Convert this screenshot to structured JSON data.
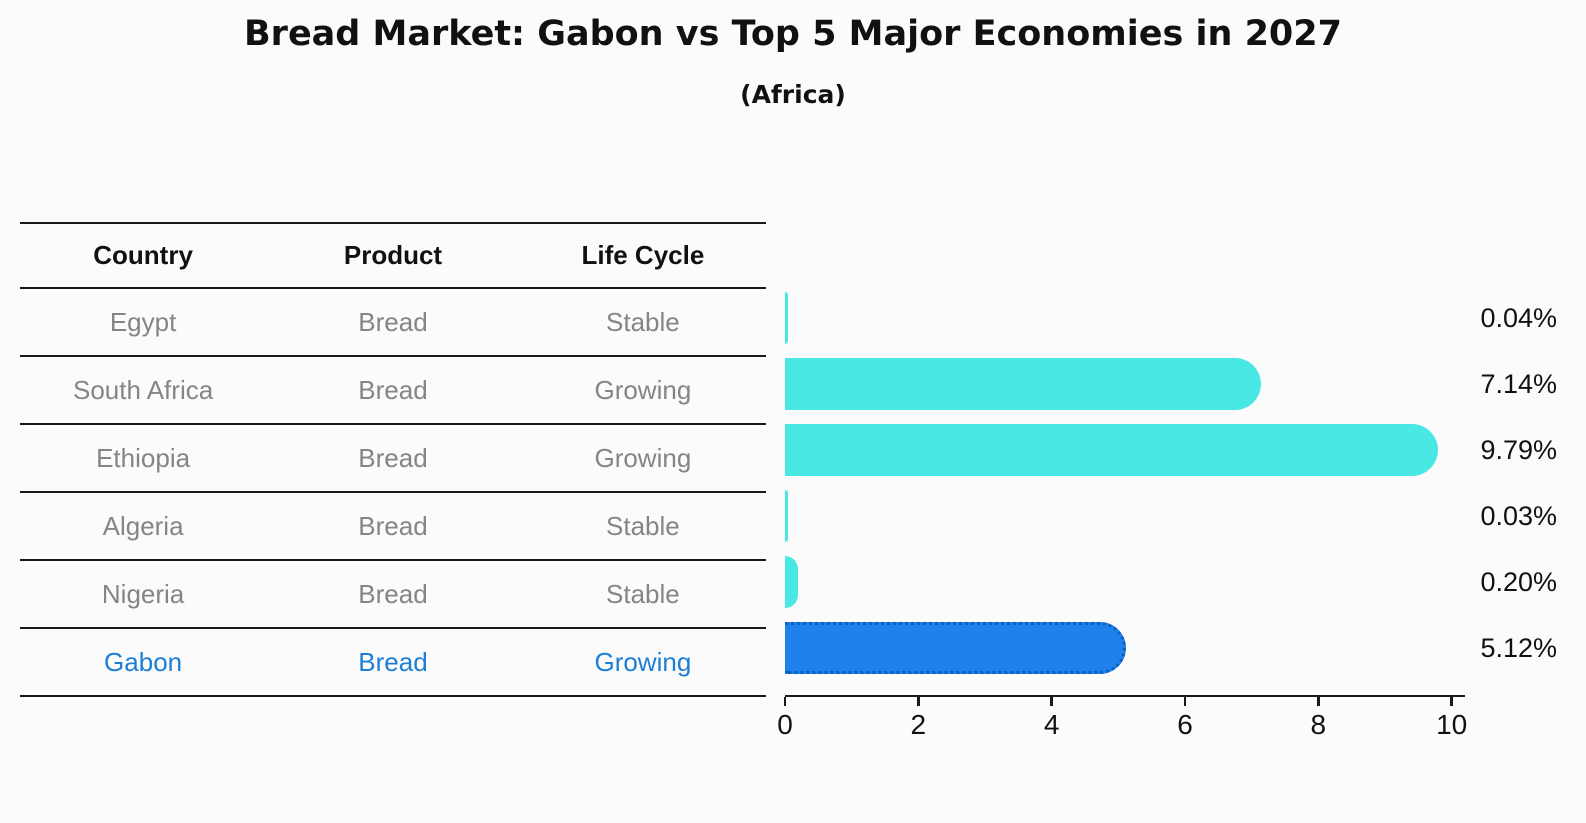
{
  "title": "Bread Market: Gabon vs Top 5 Major Economies in 2027",
  "subtitle": "(Africa)",
  "table": {
    "headers": [
      "Country",
      "Product",
      "Life Cycle"
    ],
    "rows": [
      {
        "country": "Egypt",
        "product": "Bread",
        "life_cycle": "Stable",
        "highlight": false
      },
      {
        "country": "South Africa",
        "product": "Bread",
        "life_cycle": "Growing",
        "highlight": false
      },
      {
        "country": "Ethiopia",
        "product": "Bread",
        "life_cycle": "Growing",
        "highlight": false
      },
      {
        "country": "Algeria",
        "product": "Bread",
        "life_cycle": "Stable",
        "highlight": false
      },
      {
        "country": "Nigeria",
        "product": "Bread",
        "life_cycle": "Stable",
        "highlight": false
      },
      {
        "country": "Gabon",
        "product": "Bread",
        "life_cycle": "Growing",
        "highlight": true
      }
    ]
  },
  "chart_data": {
    "type": "bar",
    "orientation": "horizontal",
    "title": "Bread Market: Gabon vs Top 5 Major Economies in 2027",
    "subtitle": "(Africa)",
    "categories": [
      "Egypt",
      "South Africa",
      "Ethiopia",
      "Algeria",
      "Nigeria",
      "Gabon"
    ],
    "values": [
      0.04,
      7.14,
      9.79,
      0.03,
      0.2,
      5.12
    ],
    "value_labels": [
      "0.04%",
      "7.14%",
      "9.79%",
      "0.03%",
      "0.20%",
      "5.12%"
    ],
    "unit": "%",
    "x_ticks": [
      0,
      2,
      4,
      6,
      8,
      10
    ],
    "xlim": [
      0,
      10.2
    ],
    "highlight_category": "Gabon",
    "grid": false,
    "legend": false,
    "colors": {
      "bar": "#4AE8E4",
      "highlight_bar": "#1E82EA",
      "highlight_bar_border": "#0D5FC4",
      "highlight_text": "#1C7ED6",
      "text": "#111111",
      "muted_text": "#858585",
      "axis": "#1a1a1a"
    }
  }
}
